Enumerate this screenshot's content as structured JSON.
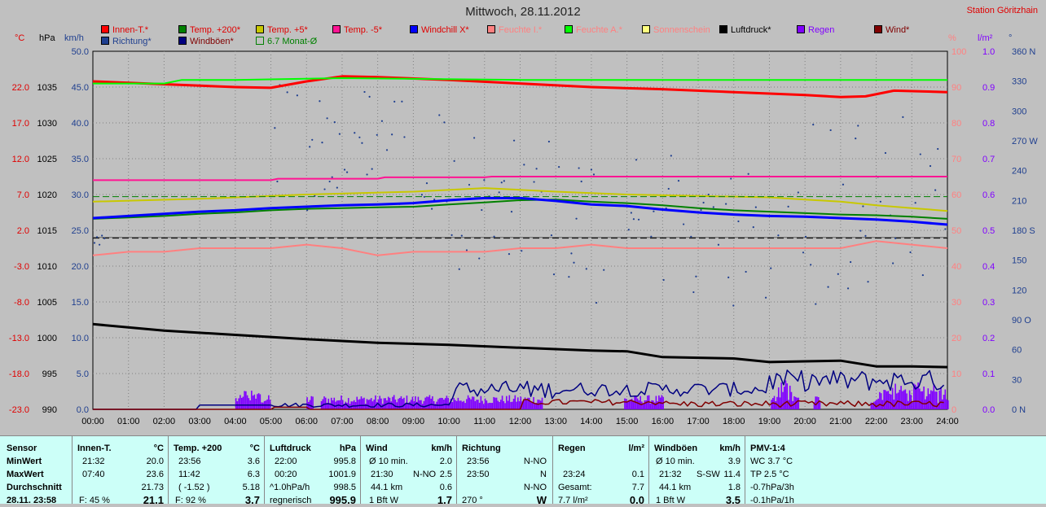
{
  "title": "Mittwoch, 28.11.2012",
  "station": "Station Göritzhain",
  "legend": [
    {
      "label": "Innen-T.*",
      "color": "#ff0000",
      "text": "#e00000"
    },
    {
      "label": "Temp. +200*",
      "color": "#008000",
      "text": "#e00000"
    },
    {
      "label": "Temp. +5*",
      "color": "#c8c800",
      "text": "#e00000"
    },
    {
      "label": "Temp. -5*",
      "color": "#ff1493",
      "text": "#e00000"
    },
    {
      "label": "Windchill X*",
      "color": "#0000ff",
      "text": "#e00000"
    },
    {
      "label": "Feuchte I.*",
      "color": "#ff8080",
      "text": "#ff8080"
    },
    {
      "label": "Feuchte A.*",
      "color": "#00ff00",
      "text": "#ff8080"
    },
    {
      "label": "Sonnenschein",
      "color": "#ffff80",
      "text": "#ff8080"
    },
    {
      "label": "Luftdruck*",
      "color": "#000000",
      "text": "#000000"
    },
    {
      "label": "Regen",
      "color": "#8000ff",
      "text": "#8000ff"
    },
    {
      "label": "Wind*",
      "color": "#800000",
      "text": "#800000"
    },
    {
      "label": "Richtung*",
      "color": "#1f3f8f",
      "text": "#1f3f8f"
    },
    {
      "label": "Windböen*",
      "color": "#000080",
      "text": "#800000"
    },
    {
      "label": "6.7 Monat-Ø",
      "color": "#c0c0c0",
      "text": "#008000"
    }
  ],
  "axes": {
    "temp_unit": "°C",
    "press_unit": "hPa",
    "wind_unit": "km/h",
    "hum_unit": "%",
    "rain_unit": "l/m²",
    "dir_unit": "°",
    "temp_ticks": [
      "22.0",
      "17.0",
      "12.0",
      "7.0",
      "2.0",
      "-3.0",
      "-8.0",
      "-13.0",
      "-18.0",
      "-23.0"
    ],
    "press_ticks": [
      "1035",
      "1030",
      "1025",
      "1020",
      "1015",
      "1010",
      "1005",
      "1000",
      "995",
      "990"
    ],
    "wind_ticks": [
      "50.0",
      "45.0",
      "40.0",
      "35.0",
      "30.0",
      "25.0",
      "20.0",
      "15.0",
      "10.0",
      "5.0",
      "0.0"
    ],
    "hum_ticks": [
      "100",
      "90",
      "80",
      "70",
      "60",
      "50",
      "40",
      "30",
      "20",
      "10",
      "0"
    ],
    "rain_ticks": [
      "1.0",
      "0.9",
      "0.8",
      "0.7",
      "0.6",
      "0.5",
      "0.4",
      "0.3",
      "0.2",
      "0.1",
      "0.0"
    ],
    "dir_ticks": [
      "360 N",
      "330",
      "300",
      "270 W",
      "240",
      "210",
      "180 S",
      "150",
      "120",
      "90 O",
      "60",
      "30",
      "0 N"
    ],
    "time_ticks": [
      "00:00",
      "01:00",
      "02:00",
      "03:00",
      "04:00",
      "05:00",
      "06:00",
      "07:00",
      "08:00",
      "09:00",
      "10:00",
      "11:00",
      "12:00",
      "13:00",
      "14:00",
      "15:00",
      "16:00",
      "17:00",
      "18:00",
      "19:00",
      "20:00",
      "21:00",
      "22:00",
      "23:00",
      "24:00"
    ]
  },
  "chart_data": {
    "type": "line",
    "x_unit": "hours",
    "series": [
      {
        "name": "Innen-T.*",
        "axis": "temp",
        "color": "#ff0000",
        "x": [
          0,
          2,
          4,
          5,
          6,
          7,
          8,
          10,
          12,
          14,
          16,
          18,
          20,
          21,
          21.7,
          22.5,
          24
        ],
        "y": [
          22.8,
          22.4,
          22.0,
          21.9,
          22.8,
          23.5,
          23.4,
          23.0,
          22.5,
          22.0,
          21.7,
          21.3,
          20.9,
          20.6,
          20.7,
          21.5,
          21.3
        ]
      },
      {
        "name": "Temp. +200*",
        "axis": "temp",
        "color": "#008000",
        "x": [
          0,
          1,
          2,
          3,
          4,
          5,
          6,
          7,
          8,
          9,
          10,
          11,
          12,
          13,
          14,
          15,
          16,
          17,
          18,
          19,
          20,
          21,
          22,
          23,
          24
        ],
        "y": [
          3.6,
          3.8,
          4.0,
          4.3,
          4.5,
          4.8,
          5.0,
          5.1,
          5.2,
          5.3,
          5.6,
          5.9,
          6.2,
          6.3,
          6.0,
          5.8,
          5.5,
          5.1,
          4.8,
          4.6,
          4.4,
          4.2,
          4.1,
          3.9,
          3.6
        ]
      },
      {
        "name": "Temp. +5*",
        "axis": "temp",
        "color": "#c8c800",
        "x": [
          0,
          3,
          6,
          9,
          11,
          13,
          15,
          17,
          19,
          20,
          21,
          22,
          23,
          24
        ],
        "y": [
          6.0,
          6.4,
          7.0,
          7.4,
          7.9,
          7.4,
          7.0,
          6.8,
          6.6,
          6.3,
          6.0,
          5.5,
          5.1,
          4.7
        ]
      },
      {
        "name": "Temp. -5*",
        "axis": "temp",
        "color": "#ff1493",
        "x": [
          0,
          5,
          5.2,
          8,
          8.2,
          11,
          11.2,
          24
        ],
        "y": [
          9.0,
          9.0,
          9.2,
          9.2,
          9.4,
          9.4,
          9.5,
          9.5
        ]
      },
      {
        "name": "Windchill X*",
        "axis": "temp",
        "color": "#0000ff",
        "x": [
          0,
          1,
          2,
          3,
          4,
          5,
          6,
          7,
          8,
          9,
          10,
          11,
          12,
          13,
          14,
          15,
          16,
          17,
          18,
          19,
          20,
          21,
          22,
          23,
          24
        ],
        "y": [
          3.7,
          4.0,
          4.3,
          4.6,
          4.8,
          5.1,
          5.3,
          5.5,
          5.6,
          5.8,
          6.2,
          6.5,
          6.5,
          6.1,
          5.6,
          5.4,
          4.9,
          4.5,
          4.2,
          4.0,
          3.9,
          3.7,
          3.5,
          3.2,
          2.8
        ]
      },
      {
        "name": "Feuchte I.*",
        "axis": "hum",
        "color": "#ff8080",
        "x": [
          0,
          1,
          2,
          3,
          4,
          5,
          6,
          7,
          8,
          9,
          10,
          11,
          12,
          13,
          14,
          15,
          16,
          17,
          18,
          19,
          20,
          21,
          22,
          23,
          24
        ],
        "y": [
          43,
          44,
          44,
          45,
          45,
          45,
          46,
          45,
          43,
          44,
          44,
          44,
          45,
          45,
          46,
          45,
          45,
          45,
          45,
          45,
          45,
          45,
          47,
          46,
          45
        ]
      },
      {
        "name": "Feuchte A.*",
        "axis": "hum",
        "color": "#00ff00",
        "x": [
          0,
          2,
          2.5,
          4,
          7,
          12,
          14,
          20,
          24
        ],
        "y": [
          91,
          91,
          92,
          92,
          92.5,
          92,
          92,
          92,
          92
        ]
      },
      {
        "name": "Luftdruck*",
        "axis": "press",
        "color": "#000000",
        "x": [
          0,
          2,
          4,
          6,
          8,
          10,
          12,
          14,
          15,
          16,
          17,
          18,
          19,
          20,
          21,
          22,
          23,
          24
        ],
        "y": [
          1001.9,
          1001.0,
          1000.4,
          999.8,
          999.3,
          999.0,
          998.6,
          998.2,
          998.1,
          997.3,
          997.2,
          997.1,
          996.6,
          996.7,
          996.8,
          996.0,
          996.0,
          995.9
        ]
      },
      {
        "name": "6.7 Monat-Ø",
        "axis": "temp",
        "color": "#008000",
        "x": [
          0,
          24
        ],
        "y": [
          6.7,
          6.7
        ]
      }
    ],
    "stats_summary": {
      "press_min": 995.8,
      "press_max": 1001.9,
      "temp_min": 3.6,
      "temp_max": 6.3
    }
  },
  "stats": {
    "sensor": {
      "h": "Sensor",
      "rows": [
        "MinWert",
        "MaxWert",
        "Durchschnitt",
        "28.11. 23:58"
      ]
    },
    "innen": {
      "h": "Innen-T.",
      "u": "°C",
      "rows": [
        [
          "21:32",
          "20.0"
        ],
        [
          "07:40",
          "23.6"
        ],
        [
          "",
          "21.73"
        ],
        [
          "F: 45 %",
          "21.1"
        ]
      ]
    },
    "temp200": {
      "h": "Temp. +200",
      "u": "°C",
      "rows": [
        [
          "23:56",
          "3.6"
        ],
        [
          "11:42",
          "6.3"
        ],
        [
          "( -1.52 )",
          "5.18"
        ],
        [
          "F: 92 %",
          "3.7"
        ]
      ]
    },
    "luftdruck": {
      "h": "Luftdruck",
      "u": "hPa",
      "rows": [
        [
          "22:00",
          "995.8"
        ],
        [
          "00:20",
          "1001.9"
        ],
        [
          "^1.0hPa/h",
          "998.5"
        ],
        [
          "regnerisch",
          "995.9"
        ]
      ]
    },
    "wind": {
      "h": "Wind",
      "u": "km/h",
      "rows": [
        [
          "Ø 10 min.",
          "",
          "2.0"
        ],
        [
          "21:30",
          "N-NO",
          "2.5"
        ],
        [
          "44.1 km",
          "",
          "0.6"
        ],
        [
          "1 Bft W",
          "",
          "1.7"
        ]
      ]
    },
    "richtung": {
      "h": "Richtung",
      "rows": [
        [
          "23:56",
          "N-NO"
        ],
        [
          "23:50",
          "N"
        ],
        [
          "",
          "N-NO"
        ],
        [
          "270 °",
          "W"
        ]
      ]
    },
    "regen": {
      "h": "Regen",
      "u": "l/m²",
      "rows": [
        [
          "",
          ""
        ],
        [
          "23:24",
          "0.1"
        ],
        [
          "Gesamt:",
          "7.7"
        ],
        [
          "7.7 l/m²",
          "0.0"
        ]
      ]
    },
    "boeen": {
      "h": "Windböen",
      "u": "km/h",
      "rows": [
        [
          "Ø 10 min.",
          "",
          "3.9"
        ],
        [
          "21:32",
          "S-SW",
          "11.4"
        ],
        [
          "44.1 km",
          "",
          "1.8"
        ],
        [
          "1 Bft W",
          "",
          "3.5"
        ]
      ]
    },
    "pmv": {
      "h": "PMV-1:4",
      "rows": [
        "WC 3.7 °C",
        "TP 2.5 °C",
        "-0.7hPa/3h",
        "-0.1hPa/1h"
      ]
    }
  }
}
